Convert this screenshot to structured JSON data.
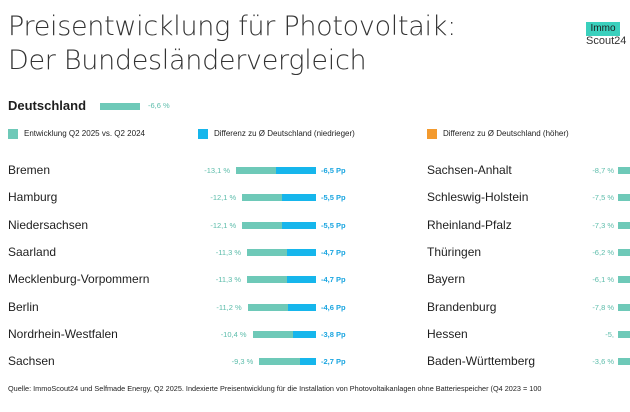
{
  "title_line1": "Preisentwicklung für Photovoltaik:",
  "title_line2": "Der Bundesländervergleich",
  "logo": {
    "top": "Immo",
    "bottom": "Scout24"
  },
  "deutschland": {
    "label": "Deutschland",
    "value": -6.6,
    "value_label": "-6,6 %"
  },
  "legend": [
    {
      "label": "Entwicklung Q2 2025 vs. Q2 2024",
      "color": "#6ec9b8"
    },
    {
      "label": "Differenz zu Ø Deutschland (niedrieger)",
      "color": "#16b6ec"
    },
    {
      "label": "Differenz zu Ø Deutschland (höher)",
      "color": "#f39a2e"
    }
  ],
  "source": "Quelle: ImmoScout24 und Selfmade Energy, Q2 2025. Indexierte Preisentwicklung für die Installation von Photovoltaikanlagen ohne Batteriespeicher (Q4 2023 = 100",
  "chart_data": {
    "type": "bar",
    "national_average": -6.6,
    "left_column": [
      {
        "state": "Bremen",
        "value": -13.1,
        "value_label": "-13,1 %",
        "diff": -6.5,
        "diff_label": "-6,5 Pp"
      },
      {
        "state": "Hamburg",
        "value": -12.1,
        "value_label": "-12,1 %",
        "diff": -5.5,
        "diff_label": "-5,5 Pp"
      },
      {
        "state": "Niedersachsen",
        "value": -12.1,
        "value_label": "-12,1 %",
        "diff": -5.5,
        "diff_label": "-5,5 Pp"
      },
      {
        "state": "Saarland",
        "value": -11.3,
        "value_label": "-11,3 %",
        "diff": -4.7,
        "diff_label": "-4,7 Pp"
      },
      {
        "state": "Mecklenburg-Vorpommern",
        "value": -11.3,
        "value_label": "-11,3 %",
        "diff": -4.7,
        "diff_label": "-4,7 Pp"
      },
      {
        "state": "Berlin",
        "value": -11.2,
        "value_label": "-11,2 %",
        "diff": -4.6,
        "diff_label": "-4,6 Pp"
      },
      {
        "state": "Nordrhein-Westfalen",
        "value": -10.4,
        "value_label": "-10,4 %",
        "diff": -3.8,
        "diff_label": "-3,8 Pp"
      },
      {
        "state": "Sachsen",
        "value": -9.3,
        "value_label": "-9,3 %",
        "diff": -2.7,
        "diff_label": "-2,7 Pp"
      }
    ],
    "right_column": [
      {
        "state": "Sachsen-Anhalt",
        "value": -8.7,
        "value_label": "-8,7 %"
      },
      {
        "state": "Schleswig-Holstein",
        "value": -7.5,
        "value_label": "-7,5 %"
      },
      {
        "state": "Rheinland-Pfalz",
        "value": -7.3,
        "value_label": "-7,3 %"
      },
      {
        "state": "Thüringen",
        "value": -6.2,
        "value_label": "-6,2 %"
      },
      {
        "state": "Bayern",
        "value": -6.1,
        "value_label": "-6,1 %"
      },
      {
        "state": "Brandenburg",
        "value": -7.8,
        "value_label": "-7,8 %"
      },
      {
        "state": "Hessen",
        "value": -5,
        "value_label": "-5,"
      },
      {
        "state": "Baden-Württemberg",
        "value": -3.6,
        "value_label": "-3,6 %"
      }
    ]
  }
}
